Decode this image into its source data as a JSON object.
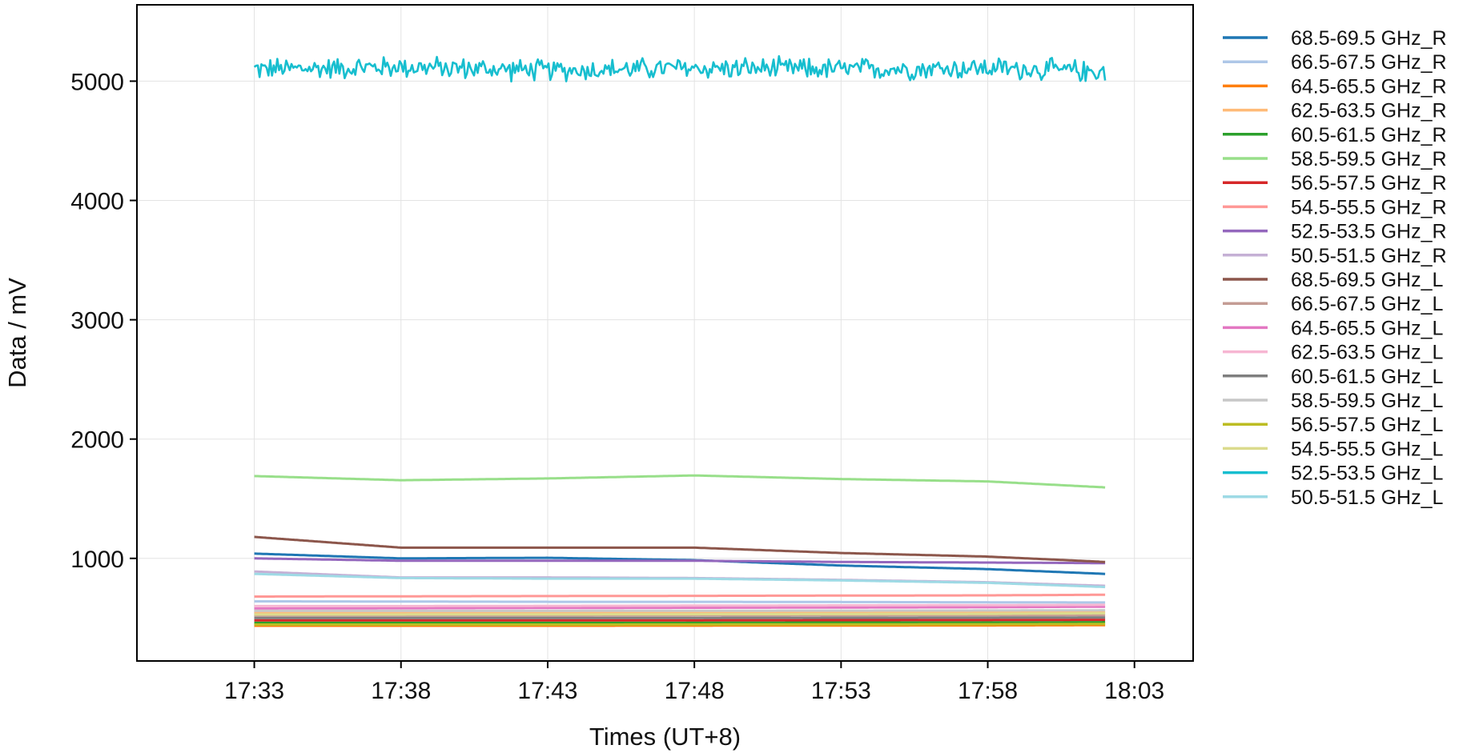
{
  "chart_data": {
    "type": "line",
    "title": "",
    "xlabel": "Times (UT+8)",
    "ylabel": "Data / mV",
    "x_range": [
      "17:29",
      "18:05"
    ],
    "ylim": [
      140,
      5640
    ],
    "x_ticks": [
      "17:33",
      "17:38",
      "17:43",
      "17:48",
      "17:53",
      "17:58",
      "18:03"
    ],
    "y_ticks": [
      1000,
      2000,
      3000,
      4000,
      5000
    ],
    "grid": true,
    "legend_position": "outside-right",
    "x_samples": [
      "17:33",
      "17:38",
      "17:43",
      "17:48",
      "17:53",
      "17:58",
      "18:02"
    ],
    "series": [
      {
        "name": "68.5-69.5 GHz_R",
        "color": "#1f77b4",
        "values": [
          1040,
          1000,
          1005,
          985,
          940,
          910,
          870
        ]
      },
      {
        "name": "66.5-67.5 GHz_R",
        "color": "#aec7e8",
        "values": [
          640,
          638,
          636,
          636,
          634,
          632,
          630
        ]
      },
      {
        "name": "64.5-65.5 GHz_R",
        "color": "#ff7f0e",
        "values": [
          435,
          435,
          435,
          436,
          437,
          438,
          440
        ]
      },
      {
        "name": "62.5-63.5 GHz_R",
        "color": "#ffbb78",
        "values": [
          545,
          545,
          545,
          546,
          547,
          548,
          550
        ]
      },
      {
        "name": "60.5-61.5 GHz_R",
        "color": "#2ca02c",
        "values": [
          460,
          460,
          460,
          461,
          462,
          463,
          465
        ]
      },
      {
        "name": "58.5-59.5 GHz_R",
        "color": "#98df8a",
        "values": [
          1690,
          1655,
          1670,
          1695,
          1665,
          1645,
          1595
        ]
      },
      {
        "name": "56.5-57.5 GHz_R",
        "color": "#d62728",
        "values": [
          480,
          480,
          480,
          481,
          482,
          483,
          485
        ]
      },
      {
        "name": "54.5-55.5 GHz_R",
        "color": "#ff9896",
        "values": [
          680,
          682,
          684,
          686,
          688,
          690,
          695
        ]
      },
      {
        "name": "52.5-53.5 GHz_R",
        "color": "#9467bd",
        "values": [
          1000,
          980,
          980,
          980,
          970,
          965,
          960
        ]
      },
      {
        "name": "50.5-51.5 GHz_R",
        "color": "#c5b0d5",
        "values": [
          890,
          840,
          840,
          835,
          820,
          800,
          770
        ]
      },
      {
        "name": "68.5-69.5 GHz_L",
        "color": "#8c564b",
        "values": [
          1180,
          1090,
          1090,
          1090,
          1045,
          1015,
          970
        ]
      },
      {
        "name": "66.5-67.5 GHz_L",
        "color": "#c49c94",
        "values": [
          520,
          520,
          521,
          522,
          523,
          524,
          525
        ]
      },
      {
        "name": "64.5-65.5 GHz_L",
        "color": "#e377c2",
        "values": [
          580,
          582,
          584,
          586,
          588,
          590,
          595
        ]
      },
      {
        "name": "62.5-63.5 GHz_L",
        "color": "#f7b6d2",
        "values": [
          600,
          600,
          602,
          604,
          606,
          608,
          610
        ]
      },
      {
        "name": "60.5-61.5 GHz_L",
        "color": "#7f7f7f",
        "values": [
          500,
          500,
          500,
          501,
          502,
          503,
          505
        ]
      },
      {
        "name": "58.5-59.5 GHz_L",
        "color": "#c7c7c7",
        "values": [
          560,
          560,
          560,
          561,
          562,
          563,
          565
        ]
      },
      {
        "name": "56.5-57.5 GHz_L",
        "color": "#bcbd22",
        "values": [
          445,
          445,
          445,
          446,
          447,
          448,
          450
        ]
      },
      {
        "name": "54.5-55.5 GHz_L",
        "color": "#dbdb8d",
        "values": [
          530,
          530,
          531,
          532,
          533,
          535,
          540
        ]
      },
      {
        "name": "52.5-53.5 GHz_L",
        "color": "#17becf",
        "values": [
          5100,
          5120,
          5090,
          5110,
          5100,
          5110,
          5080
        ],
        "noise_amplitude": 110
      },
      {
        "name": "50.5-51.5 GHz_L",
        "color": "#9edae5",
        "values": [
          870,
          835,
          830,
          830,
          815,
          795,
          760
        ]
      }
    ]
  }
}
